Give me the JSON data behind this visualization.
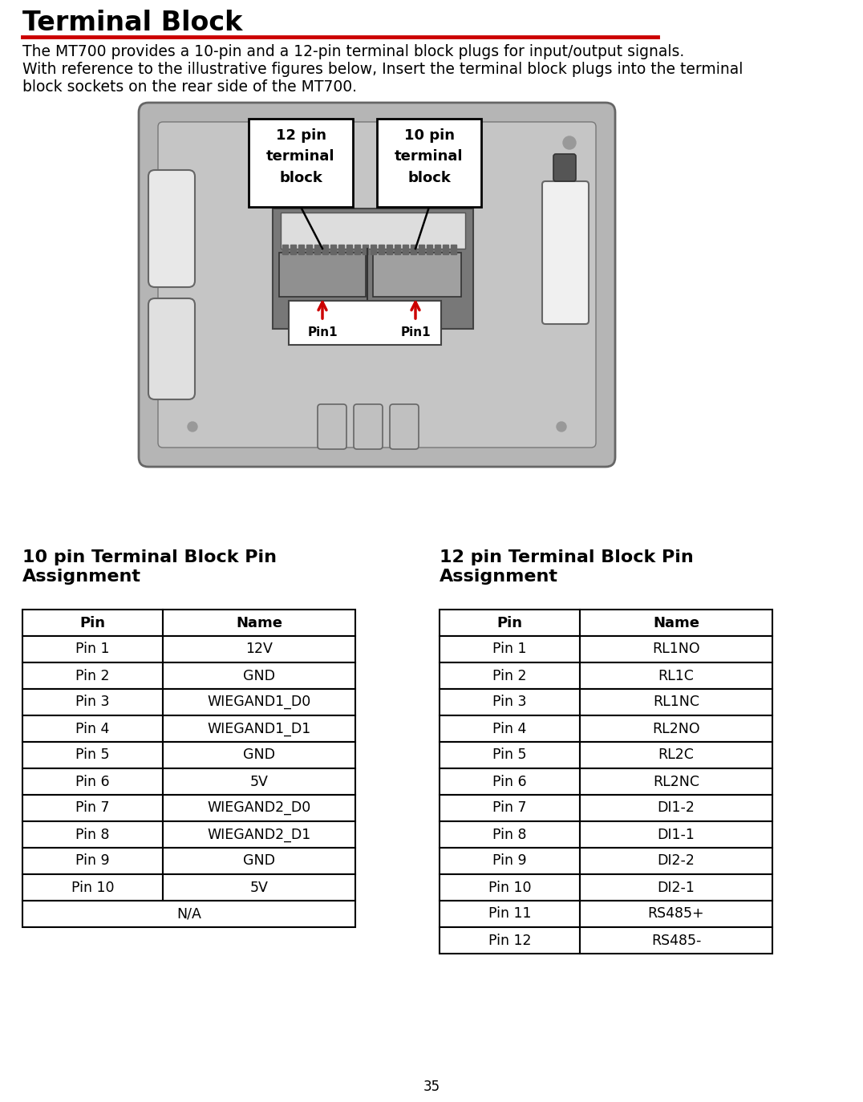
{
  "title": "Terminal Block",
  "title_underline_color": "#cc0000",
  "body_text_line1": "The MT700 provides a 10-pin and a 12-pin terminal block plugs for input/output signals.",
  "body_text_line2": "With reference to the illustrative figures below, Insert the terminal block plugs into the terminal",
  "body_text_line3": "block sockets on the rear side of the MT700.",
  "label_12pin": "12 pin\nterminal\nblock",
  "label_10pin": "10 pin\nterminal\nblock",
  "pin1_label": "Pin1",
  "table_header_10pin": "10 pin Terminal Block Pin\nAssignment",
  "table_header_12pin": "12 pin Terminal Block Pin\nAssignment",
  "col_headers": [
    "Pin",
    "Name",
    "Pin",
    "Name"
  ],
  "table_10pin": [
    [
      "Pin 1",
      "12V"
    ],
    [
      "Pin 2",
      "GND"
    ],
    [
      "Pin 3",
      "WIEGAND1_D0"
    ],
    [
      "Pin 4",
      "WIEGAND1_D1"
    ],
    [
      "Pin 5",
      "GND"
    ],
    [
      "Pin 6",
      "5V"
    ],
    [
      "Pin 7",
      "WIEGAND2_D0"
    ],
    [
      "Pin 8",
      "WIEGAND2_D1"
    ],
    [
      "Pin 9",
      "GND"
    ],
    [
      "Pin 10",
      "5V"
    ],
    [
      "N/A",
      ""
    ]
  ],
  "table_12pin": [
    [
      "Pin 1",
      "RL1NO"
    ],
    [
      "Pin 2",
      "RL1C"
    ],
    [
      "Pin 3",
      "RL1NC"
    ],
    [
      "Pin 4",
      "RL2NO"
    ],
    [
      "Pin 5",
      "RL2C"
    ],
    [
      "Pin 6",
      "RL2NC"
    ],
    [
      "Pin 7",
      "DI1-2"
    ],
    [
      "Pin 8",
      "DI1-1"
    ],
    [
      "Pin 9",
      "DI2-2"
    ],
    [
      "Pin 10",
      "DI2-1"
    ],
    [
      "Pin 11",
      "RS485+"
    ],
    [
      "Pin 12",
      "RS485-"
    ]
  ],
  "page_number": "35",
  "bg_color": "#ffffff",
  "text_color": "#000000",
  "red_color": "#cc0000",
  "table_border_color": "#000000",
  "device_outer_color": "#b0b0b0",
  "device_inner_color": "#c8c8c8",
  "device_edge_color": "#555555",
  "tb_dark": "#888888",
  "tb_mid": "#999999",
  "tb_light": "#aaaaaa"
}
